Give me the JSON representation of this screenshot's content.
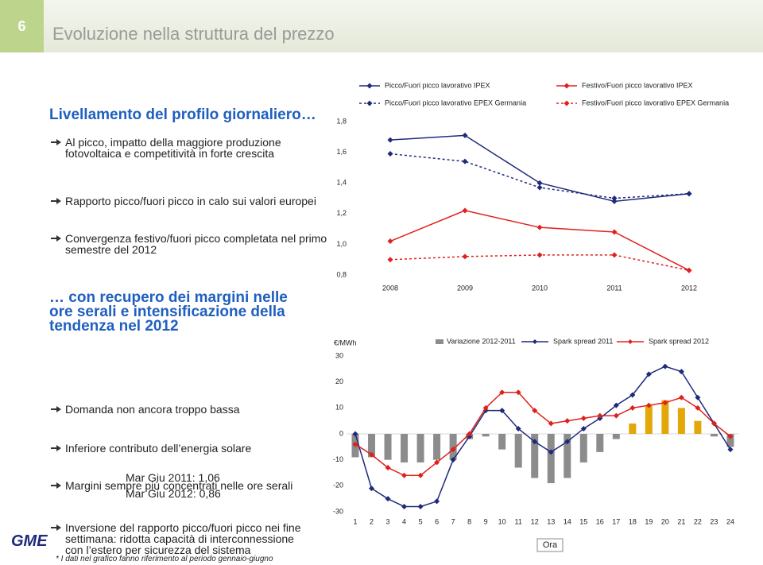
{
  "header": {
    "slide_number": "6",
    "title": "Evoluzione nella struttura del prezzo"
  },
  "left_panel": {
    "heading1": "Livellamento del profilo giornaliero…",
    "points1": [
      "Al picco, impatto della maggiore produzione fotovoltaica e competitività in forte crescita",
      "Rapporto picco/fuori picco in calo sui valori europei",
      "Convergenza festivo/fuori picco completata nel primo semestre del 2012"
    ],
    "heading2": "… con recupero dei margini nelle ore serali e intensificazione della tendenza nel 2012",
    "points2": [
      "Domanda non ancora troppo bassa",
      "Inferiore contributo dell’energia solare",
      "Margini sempre più concentrati nelle ore serali",
      "Inversione del rapporto picco/fuori picco nei fine settimana: ridotta capacità di interconnessione con l’estero per sicurezza del sistema"
    ],
    "notes": [
      "Mar Giu 2011: 1,06",
      "Mar Giu 2012: 0,86"
    ]
  },
  "chart_data": [
    {
      "type": "line",
      "categories": [
        "2008",
        "2009",
        "2010",
        "2011",
        "2012"
      ],
      "ylim": [
        0.8,
        1.8
      ],
      "yticks": [
        {
          "value": 0.8,
          "label": "0,8"
        },
        {
          "value": 1.0,
          "label": "1,0"
        },
        {
          "value": 1.2,
          "label": "1,2"
        },
        {
          "value": 1.4,
          "label": "1,4"
        },
        {
          "value": 1.6,
          "label": "1,6"
        },
        {
          "value": 1.8,
          "label": "1,8"
        }
      ],
      "series": [
        {
          "name": "Picco/Fuori picco lavorativo IPEX",
          "color": "#1f2a7a",
          "dashed": false,
          "values": [
            1.68,
            1.71,
            1.4,
            1.28,
            1.33
          ]
        },
        {
          "name": "Festivo/Fuori picco lavorativo IPEX",
          "color": "#e0201b",
          "dashed": false,
          "values": [
            1.02,
            1.22,
            1.11,
            1.08,
            0.83
          ]
        },
        {
          "name": "Picco/Fuori picco lavorativo EPEX Germania",
          "color": "#1f2a7a",
          "dashed": true,
          "values": [
            1.59,
            1.54,
            1.37,
            1.3,
            1.33
          ]
        },
        {
          "name": "Festivo/Fuori picco lavorativo EPEX Germania",
          "color": "#e0201b",
          "dashed": true,
          "values": [
            0.9,
            0.92,
            0.93,
            0.93,
            0.83
          ]
        }
      ]
    },
    {
      "type": "combo",
      "y_label": "€/MWh",
      "x_label": "Ora",
      "categories": [
        "1",
        "2",
        "3",
        "4",
        "5",
        "6",
        "7",
        "8",
        "9",
        "10",
        "11",
        "12",
        "13",
        "14",
        "15",
        "16",
        "17",
        "18",
        "19",
        "20",
        "21",
        "22",
        "23",
        "24"
      ],
      "ylim": [
        -30,
        30
      ],
      "yticks": [
        -30,
        -20,
        -10,
        0,
        10,
        20,
        30
      ],
      "series": [
        {
          "name": "Variazione 2012-2011",
          "kind": "bar",
          "color": "#8c8c8c",
          "positive_color": "#e3a70a",
          "values": [
            -9,
            -9,
            -10,
            -11,
            -11,
            -10,
            -10,
            -2,
            -1,
            -6,
            -13,
            -17,
            -19,
            -17,
            -11,
            -7,
            -2,
            4,
            11,
            13,
            10,
            5,
            -1,
            -5
          ]
        },
        {
          "name": "Spark spread 2011",
          "kind": "line",
          "color": "#1f2a7a",
          "values": [
            0,
            -21,
            -25,
            -28,
            -28,
            -26,
            -10,
            -1,
            9,
            9,
            2,
            -3,
            -7,
            -3,
            2,
            6,
            11,
            15,
            23,
            26,
            24,
            14,
            4,
            -6
          ]
        },
        {
          "name": "Spark spread 2012",
          "kind": "line",
          "color": "#e0201b",
          "values": [
            -4,
            -8,
            -13,
            -16,
            -16,
            -11,
            -6,
            0,
            10,
            16,
            16,
            9,
            4,
            5,
            6,
            7,
            7,
            10,
            11,
            12,
            14,
            10,
            4,
            -1
          ]
        }
      ]
    }
  ],
  "footnote": "* I dati nel grafico fanno riferimento al periodo gennaio-giugno",
  "logo": {
    "text": "GME"
  }
}
